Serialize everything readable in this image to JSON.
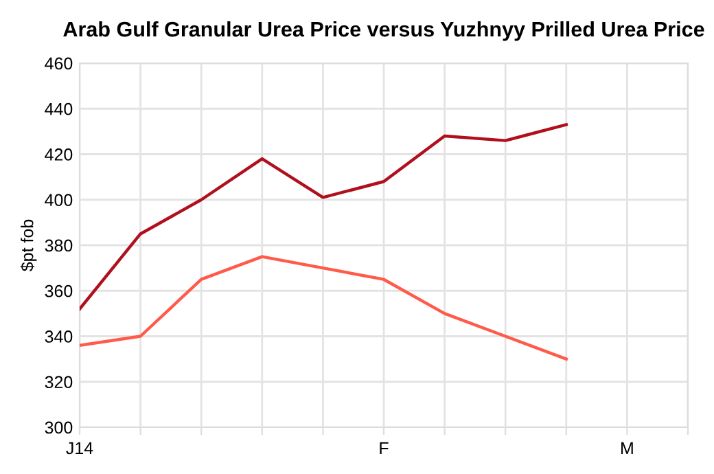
{
  "chart_data": {
    "type": "line",
    "title": "Arab Gulf Granular Urea Price versus Yuzhnyy Prilled Urea Price",
    "ylabel": "$pt fob",
    "categories": [
      "J14",
      null,
      null,
      null,
      null,
      "F",
      null,
      null,
      null,
      "M",
      null
    ],
    "series": [
      {
        "color": "#b0101e",
        "values": [
          352,
          385,
          400,
          418,
          401,
          408,
          428,
          426,
          433,
          null,
          null
        ]
      },
      {
        "color": "#ff5a4a",
        "values": [
          336,
          340,
          365,
          375,
          370,
          365,
          350,
          340,
          330,
          null,
          null
        ]
      }
    ],
    "ylim": [
      300,
      460
    ],
    "yticks": [
      300,
      320,
      340,
      360,
      380,
      400,
      420,
      440,
      460
    ],
    "grid": true,
    "legend": false,
    "marker": "none",
    "line_style": "solid"
  }
}
